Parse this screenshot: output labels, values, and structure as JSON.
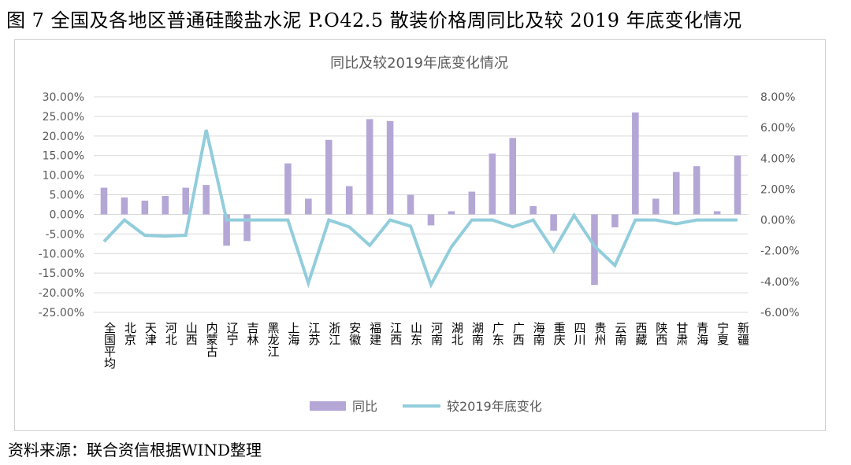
{
  "figure_title": "图 7  全国及各地区普通硅酸盐水泥 P.O42.5 散装价格周同比及较 2019 年底变化情况",
  "source_note": "资料来源：联合资信根据WIND整理",
  "colors": {
    "bar": "#B4A7D6",
    "line": "#92CDDC",
    "grid": "#D9D9D9",
    "axis_text": "#595959"
  },
  "chart_data": {
    "type": "bar",
    "title": "同比及较2019年底变化情况",
    "categories": [
      "全国平均",
      "北京",
      "天津",
      "河北",
      "山西",
      "内蒙古",
      "辽宁",
      "吉林",
      "黑龙江",
      "上海",
      "江苏",
      "浙江",
      "安徽",
      "福建",
      "江西",
      "山东",
      "河南",
      "湖北",
      "湖南",
      "广东",
      "广西",
      "海南",
      "重庆",
      "四川",
      "贵州",
      "云南",
      "西藏",
      "陕西",
      "甘肃",
      "青海",
      "宁夏",
      "新疆"
    ],
    "y_left": {
      "min": -25,
      "max": 30,
      "step": 5,
      "tick_labels": [
        "30.00%",
        "25.00%",
        "20.00%",
        "15.00%",
        "10.00%",
        "5.00%",
        "0.00%",
        "-5.00%",
        "-10.00%",
        "-15.00%",
        "-20.00%",
        "-25.00%"
      ]
    },
    "y_right": {
      "min": -6,
      "max": 8,
      "step": 2,
      "tick_labels": [
        "8.00%",
        "6.00%",
        "4.00%",
        "2.00%",
        "0.00%",
        "-2.00%",
        "-4.00%",
        "-6.00%"
      ]
    },
    "grid": "horizontal",
    "legend_position": "bottom",
    "series": [
      {
        "name": "同比",
        "type": "bar",
        "axis": "left",
        "values": [
          6.8,
          4.3,
          3.5,
          4.7,
          6.8,
          7.5,
          -8.0,
          -6.8,
          0,
          13.0,
          4.0,
          19.0,
          7.2,
          24.3,
          23.8,
          5.0,
          -2.8,
          0.8,
          5.8,
          15.5,
          19.5,
          2.1,
          -4.2,
          0,
          -18.0,
          -3.3,
          26.0,
          4.0,
          10.8,
          12.3,
          0.8,
          15.0
        ]
      },
      {
        "name": "较2019年底变化",
        "type": "line",
        "axis": "right",
        "values": [
          -1.4,
          0.0,
          -1.0,
          -1.05,
          -1.0,
          5.85,
          0.0,
          0.0,
          0.0,
          0.0,
          -4.1,
          0.0,
          -0.45,
          -1.65,
          0.0,
          -0.4,
          -4.2,
          -1.75,
          0.0,
          0.0,
          -0.45,
          0.0,
          -2.0,
          0.3,
          -1.7,
          -2.95,
          0.0,
          0.0,
          -0.25,
          0.0,
          0.0,
          0.0
        ]
      }
    ]
  }
}
